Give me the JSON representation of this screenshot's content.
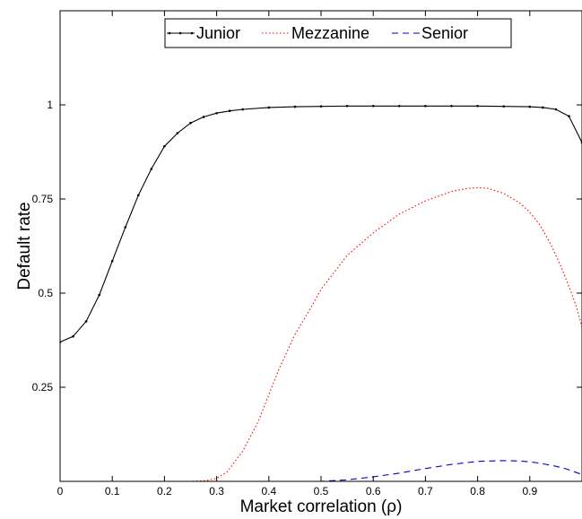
{
  "chart_data": {
    "type": "line",
    "title": "",
    "xlabel": "Market correlation (ρ)",
    "ylabel": "Default rate",
    "xlim": [
      0,
      1
    ],
    "ylim": [
      0,
      1.25
    ],
    "xticks": [
      0,
      0.1,
      0.2,
      0.3,
      0.4,
      0.5,
      0.6,
      0.7,
      0.8,
      0.9
    ],
    "xtick_labels": [
      "0",
      "0.1",
      "0.2",
      "0.3",
      "0.4",
      "0.5",
      "0.6",
      "0.7",
      "0.8",
      "0.9"
    ],
    "yticks": [
      0.25,
      0.5,
      0.75,
      1
    ],
    "ytick_labels": [
      "0.25",
      "0.5",
      "0.75",
      "1"
    ],
    "grid": false,
    "legend_position": "top-center",
    "series": [
      {
        "name": "Junior",
        "color": "#000000",
        "style": "solid-with-dots",
        "x": [
          0,
          0.025,
          0.05,
          0.075,
          0.1,
          0.125,
          0.15,
          0.175,
          0.2,
          0.225,
          0.25,
          0.275,
          0.3,
          0.325,
          0.35,
          0.4,
          0.45,
          0.5,
          0.55,
          0.6,
          0.65,
          0.7,
          0.75,
          0.8,
          0.85,
          0.9,
          0.925,
          0.95,
          0.975,
          1.0
        ],
        "y": [
          0.37,
          0.385,
          0.425,
          0.495,
          0.585,
          0.675,
          0.76,
          0.83,
          0.89,
          0.925,
          0.952,
          0.968,
          0.978,
          0.984,
          0.988,
          0.993,
          0.995,
          0.996,
          0.997,
          0.997,
          0.997,
          0.997,
          0.997,
          0.997,
          0.996,
          0.995,
          0.993,
          0.988,
          0.97,
          0.9
        ]
      },
      {
        "name": "Mezzanine",
        "color": "#ff0000",
        "style": "dotted",
        "x": [
          0,
          0.25,
          0.28,
          0.3,
          0.32,
          0.35,
          0.38,
          0.4,
          0.42,
          0.45,
          0.48,
          0.5,
          0.55,
          0.6,
          0.65,
          0.7,
          0.75,
          0.78,
          0.8,
          0.82,
          0.85,
          0.88,
          0.9,
          0.92,
          0.94,
          0.96,
          0.98,
          0.99,
          1.0
        ],
        "y": [
          0,
          0,
          0.002,
          0.008,
          0.025,
          0.08,
          0.16,
          0.23,
          0.3,
          0.39,
          0.46,
          0.51,
          0.6,
          0.66,
          0.71,
          0.745,
          0.77,
          0.778,
          0.78,
          0.778,
          0.765,
          0.74,
          0.715,
          0.68,
          0.63,
          0.57,
          0.5,
          0.46,
          0.41
        ]
      },
      {
        "name": "Senior",
        "color": "#0000cc",
        "style": "dashed",
        "x": [
          0,
          0.5,
          0.55,
          0.6,
          0.65,
          0.7,
          0.75,
          0.8,
          0.85,
          0.88,
          0.9,
          0.92,
          0.95,
          0.97,
          1.0
        ],
        "y": [
          0,
          0,
          0.004,
          0.012,
          0.022,
          0.034,
          0.045,
          0.053,
          0.055,
          0.054,
          0.052,
          0.048,
          0.04,
          0.033,
          0.018
        ]
      }
    ]
  }
}
